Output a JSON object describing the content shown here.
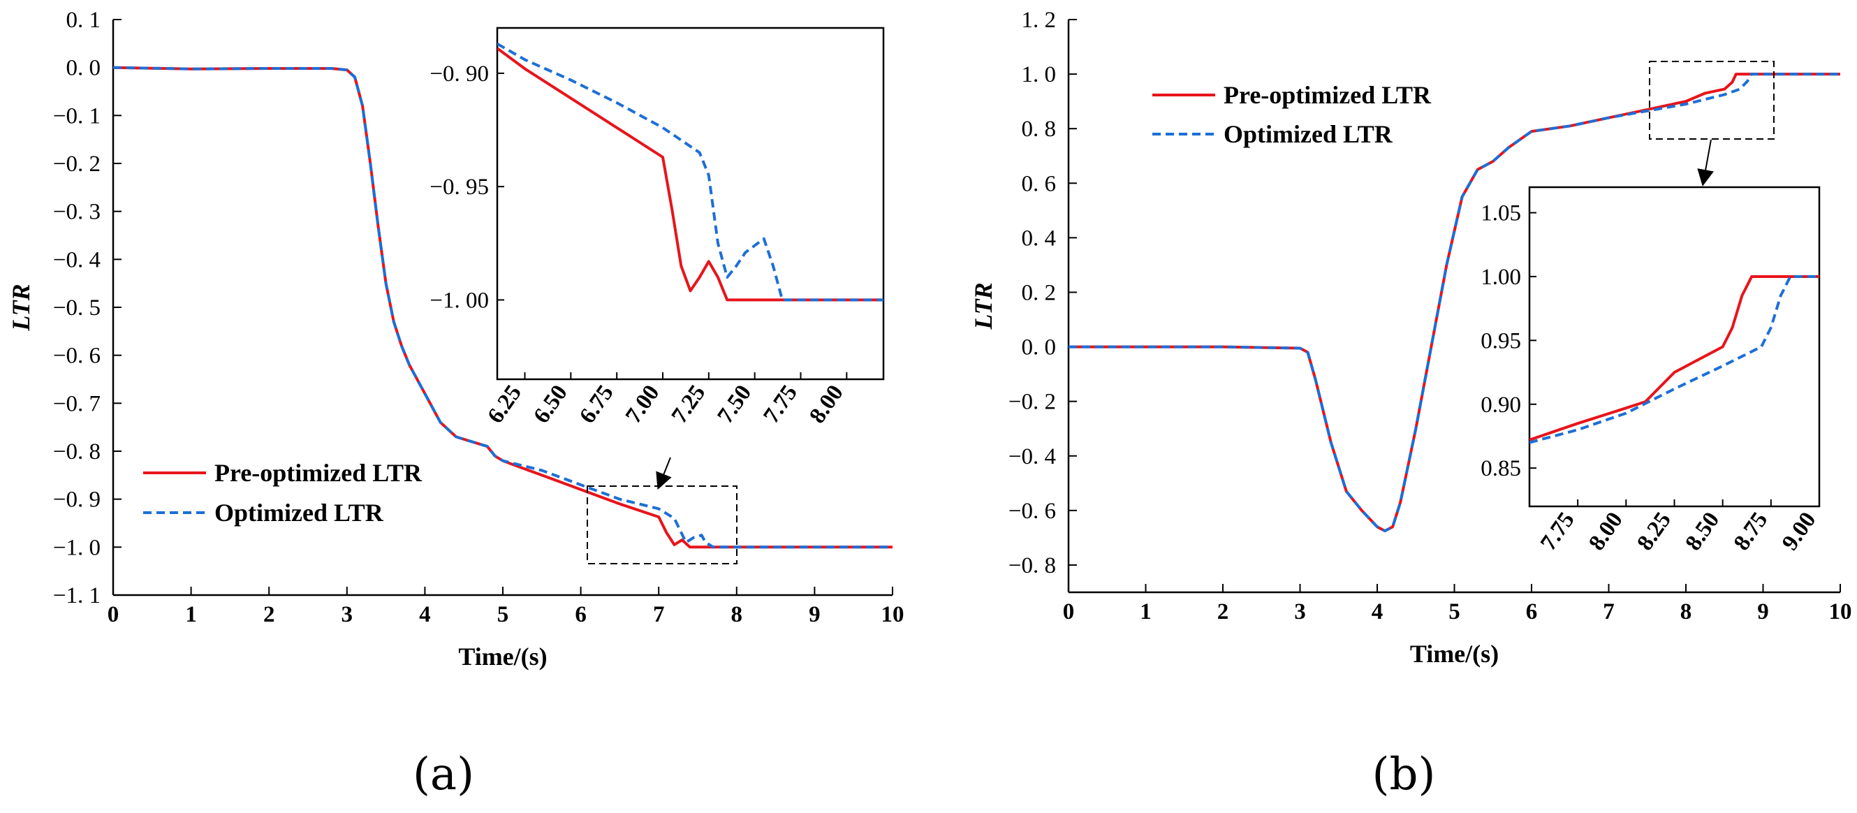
{
  "chart_data": [
    {
      "type": "line",
      "panel_label": "(a)",
      "xlabel": "Time/(s)",
      "ylabel": "LTR",
      "xlim": [
        0,
        10
      ],
      "ylim": [
        -1.1,
        0.1
      ],
      "xticks": [
        0,
        1,
        2,
        3,
        4,
        5,
        6,
        7,
        8,
        9,
        10
      ],
      "yticks": [
        0.1,
        0.0,
        -0.1,
        -0.2,
        -0.3,
        -0.4,
        -0.5,
        -0.6,
        -0.7,
        -0.8,
        -0.9,
        -1.0,
        -1.1
      ],
      "ytick_labels": [
        "0. 1",
        "0. 0",
        "−0. 1",
        "−0. 2",
        "−0. 3",
        "−0. 4",
        "−0. 5",
        "−0. 6",
        "−0. 7",
        "−0. 8",
        "−0. 9",
        "−1. 0",
        "−1. 1"
      ],
      "legend": [
        "Pre-optimized LTR",
        "Optimized LTR"
      ],
      "series": [
        {
          "name": "Pre-optimized LTR",
          "color": "#e8141b",
          "style": "solid",
          "x": [
            0,
            1,
            2,
            2.8,
            3.0,
            3.1,
            3.2,
            3.3,
            3.4,
            3.5,
            3.6,
            3.7,
            3.8,
            4.0,
            4.2,
            4.4,
            4.6,
            4.8,
            4.9,
            5.0,
            5.5,
            6.0,
            6.5,
            7.0,
            7.1,
            7.2,
            7.3,
            7.4,
            7.5,
            7.6,
            10
          ],
          "y": [
            0.0,
            -0.003,
            -0.002,
            -0.002,
            -0.005,
            -0.02,
            -0.08,
            -0.2,
            -0.33,
            -0.45,
            -0.53,
            -0.58,
            -0.62,
            -0.68,
            -0.74,
            -0.77,
            -0.78,
            -0.79,
            -0.81,
            -0.82,
            -0.85,
            -0.88,
            -0.91,
            -0.937,
            -0.97,
            -0.995,
            -0.985,
            -1.0,
            -1.0,
            -1.0,
            -1.0
          ]
        },
        {
          "name": "Optimized LTR",
          "color": "#1d6fd6",
          "style": "dashed",
          "x": [
            0,
            1,
            2,
            2.8,
            3.0,
            3.1,
            3.2,
            3.3,
            3.4,
            3.5,
            3.6,
            3.7,
            3.8,
            4.0,
            4.2,
            4.4,
            4.6,
            4.8,
            4.9,
            5.0,
            5.5,
            6.0,
            6.5,
            7.0,
            7.2,
            7.35,
            7.45,
            7.55,
            7.6,
            7.7,
            10
          ],
          "y": [
            0.0,
            -0.003,
            -0.002,
            -0.002,
            -0.005,
            -0.02,
            -0.08,
            -0.2,
            -0.33,
            -0.45,
            -0.53,
            -0.58,
            -0.62,
            -0.68,
            -0.74,
            -0.77,
            -0.78,
            -0.79,
            -0.81,
            -0.82,
            -0.84,
            -0.87,
            -0.9,
            -0.92,
            -0.94,
            -0.99,
            -0.98,
            -0.975,
            -0.99,
            -1.0,
            -1.0
          ]
        }
      ],
      "inset": {
        "xlim": [
          6.1,
          8.2
        ],
        "ylim": [
          -1.035,
          -0.88
        ],
        "xticks": [
          6.25,
          6.5,
          6.75,
          7.0,
          7.25,
          7.5,
          7.75,
          8.0
        ],
        "xtick_labels": [
          "6.25",
          "6.50",
          "6.75",
          "7.00",
          "7.25",
          "7.50",
          "7.75",
          "8.00"
        ],
        "yticks": [
          -0.9,
          -0.95,
          -1.0
        ],
        "ytick_labels": [
          "−0. 90",
          "−0. 95",
          "−1. 00"
        ],
        "series": [
          {
            "name": "Pre-optimized LTR",
            "color": "#e8141b",
            "style": "solid",
            "x": [
              6.1,
              6.25,
              6.5,
              6.75,
              7.0,
              7.05,
              7.1,
              7.15,
              7.2,
              7.25,
              7.3,
              7.35,
              7.4,
              8.2
            ],
            "y": [
              -0.889,
              -0.898,
              -0.911,
              -0.924,
              -0.937,
              -0.96,
              -0.985,
              -0.996,
              -0.99,
              -0.983,
              -0.99,
              -1.0,
              -1.0,
              -1.0
            ]
          },
          {
            "name": "Optimized LTR",
            "color": "#1d6fd6",
            "style": "dashed",
            "x": [
              6.1,
              6.25,
              6.5,
              6.75,
              7.0,
              7.2,
              7.25,
              7.3,
              7.35,
              7.4,
              7.45,
              7.55,
              7.6,
              7.65,
              8.2
            ],
            "y": [
              -0.887,
              -0.894,
              -0.903,
              -0.913,
              -0.924,
              -0.935,
              -0.945,
              -0.975,
              -0.99,
              -0.985,
              -0.979,
              -0.973,
              -0.985,
              -1.0,
              -1.0
            ]
          }
        ]
      }
    },
    {
      "type": "line",
      "panel_label": "(b)",
      "xlabel": "Time/(s)",
      "ylabel": "LTR",
      "xlim": [
        0,
        10
      ],
      "ylim": [
        -0.9,
        1.2
      ],
      "xticks": [
        0,
        1,
        2,
        3,
        4,
        5,
        6,
        7,
        8,
        9,
        10
      ],
      "yticks": [
        1.2,
        1.0,
        0.8,
        0.6,
        0.4,
        0.2,
        0.0,
        -0.2,
        -0.4,
        -0.6,
        -0.8
      ],
      "ytick_labels": [
        "1. 2",
        "1. 0",
        "0. 8",
        "0. 6",
        "0. 4",
        "0. 2",
        "0. 0",
        "−0. 2",
        "−0. 4",
        "−0. 6",
        "−0. 8"
      ],
      "legend": [
        "Pre-optimized LTR",
        "Optimized LTR"
      ],
      "series": [
        {
          "name": "Pre-optimized LTR",
          "color": "#e8141b",
          "style": "solid",
          "x": [
            0,
            1,
            2,
            3.0,
            3.1,
            3.2,
            3.4,
            3.6,
            3.8,
            4.0,
            4.1,
            4.2,
            4.3,
            4.5,
            4.7,
            4.9,
            5.1,
            5.3,
            5.5,
            5.7,
            5.9,
            6.0,
            6.5,
            7.0,
            7.5,
            8.0,
            8.25,
            8.5,
            8.6,
            8.65,
            10
          ],
          "y": [
            0.0,
            0.0,
            0.0,
            -0.005,
            -0.02,
            -0.12,
            -0.35,
            -0.53,
            -0.6,
            -0.66,
            -0.675,
            -0.66,
            -0.57,
            -0.3,
            0.0,
            0.3,
            0.55,
            0.65,
            0.68,
            0.73,
            0.77,
            0.79,
            0.81,
            0.84,
            0.87,
            0.9,
            0.93,
            0.945,
            0.97,
            1.0,
            1.0
          ]
        },
        {
          "name": "Optimized LTR",
          "color": "#1d6fd6",
          "style": "dashed",
          "x": [
            0,
            1,
            2,
            3.0,
            3.1,
            3.2,
            3.4,
            3.6,
            3.8,
            4.0,
            4.1,
            4.2,
            4.3,
            4.5,
            4.7,
            4.9,
            5.1,
            5.3,
            5.5,
            5.7,
            5.9,
            6.0,
            6.5,
            7.0,
            7.5,
            8.0,
            8.5,
            8.7,
            8.8,
            8.85,
            10
          ],
          "y": [
            0.0,
            0.0,
            0.0,
            -0.005,
            -0.02,
            -0.12,
            -0.35,
            -0.53,
            -0.6,
            -0.66,
            -0.675,
            -0.66,
            -0.57,
            -0.3,
            0.0,
            0.3,
            0.55,
            0.65,
            0.68,
            0.73,
            0.77,
            0.79,
            0.81,
            0.84,
            0.865,
            0.89,
            0.925,
            0.945,
            0.975,
            1.0,
            1.0
          ]
        }
      ],
      "inset": {
        "xlim": [
          7.5,
          9.0
        ],
        "ylim": [
          0.82,
          1.07
        ],
        "xticks": [
          7.75,
          8.0,
          8.25,
          8.5,
          8.75,
          9.0
        ],
        "xtick_labels": [
          "7.75",
          "8.00",
          "8.25",
          "8.50",
          "8.75",
          "9.00"
        ],
        "yticks": [
          1.05,
          1.0,
          0.95,
          0.9,
          0.85
        ],
        "ytick_labels": [
          "1.05",
          "1.00",
          "0.95",
          "0.90",
          "0.85"
        ],
        "series": [
          {
            "name": "Pre-optimized LTR",
            "color": "#e8141b",
            "style": "solid",
            "x": [
              7.5,
              7.75,
              8.0,
              8.1,
              8.25,
              8.5,
              8.55,
              8.6,
              8.65,
              9.0
            ],
            "y": [
              0.872,
              0.885,
              0.897,
              0.902,
              0.925,
              0.945,
              0.96,
              0.985,
              1.0,
              1.0
            ]
          },
          {
            "name": "Optimized LTR",
            "color": "#1d6fd6",
            "style": "dashed",
            "x": [
              7.5,
              7.75,
              8.0,
              8.25,
              8.5,
              8.7,
              8.75,
              8.8,
              8.85,
              9.0
            ],
            "y": [
              0.87,
              0.88,
              0.893,
              0.912,
              0.93,
              0.945,
              0.96,
              0.985,
              1.0,
              1.0
            ]
          }
        ]
      }
    }
  ]
}
